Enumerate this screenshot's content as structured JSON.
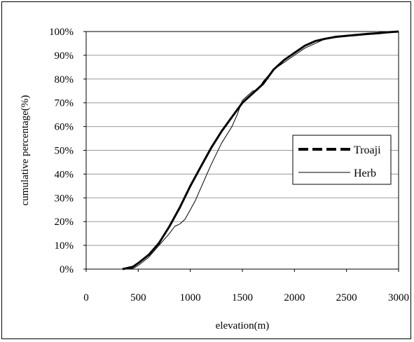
{
  "chart_data": {
    "type": "line",
    "title": "",
    "xlabel": "elevation(m)",
    "ylabel": "cumulative percentage(%)",
    "xlim": [
      0,
      3000
    ],
    "ylim": [
      0,
      100
    ],
    "x_ticks": [
      "0",
      "500",
      "1000",
      "1500",
      "2000",
      "2500",
      "3000"
    ],
    "y_ticks": [
      "0%",
      "10%",
      "20%",
      "30%",
      "40%",
      "50%",
      "60%",
      "70%",
      "80%",
      "90%",
      "100%"
    ],
    "grid": "horizontal",
    "legend_position": "right",
    "series": [
      {
        "name": "Troaji",
        "style": "thick-dashed",
        "color": "#000000",
        "points": [
          [
            350,
            0
          ],
          [
            400,
            0.5
          ],
          [
            450,
            1
          ],
          [
            500,
            2.5
          ],
          [
            600,
            6
          ],
          [
            700,
            11
          ],
          [
            800,
            18
          ],
          [
            900,
            26
          ],
          [
            1000,
            35
          ],
          [
            1100,
            43
          ],
          [
            1200,
            51
          ],
          [
            1300,
            58
          ],
          [
            1400,
            64
          ],
          [
            1500,
            70
          ],
          [
            1600,
            74
          ],
          [
            1700,
            78
          ],
          [
            1800,
            84
          ],
          [
            1900,
            88
          ],
          [
            2000,
            91
          ],
          [
            2100,
            94
          ],
          [
            2200,
            96
          ],
          [
            2300,
            97
          ],
          [
            2400,
            97.8
          ],
          [
            2500,
            98.2
          ],
          [
            2600,
            98.6
          ],
          [
            2700,
            99
          ],
          [
            2800,
            99.3
          ],
          [
            2900,
            99.7
          ],
          [
            3000,
            100
          ]
        ]
      },
      {
        "name": "Herb",
        "style": "thin-solid",
        "color": "#000000",
        "points": [
          [
            350,
            0
          ],
          [
            450,
            0.3
          ],
          [
            500,
            1.5
          ],
          [
            600,
            5
          ],
          [
            700,
            10
          ],
          [
            800,
            15
          ],
          [
            850,
            18
          ],
          [
            900,
            19
          ],
          [
            950,
            21
          ],
          [
            1000,
            25
          ],
          [
            1050,
            29
          ],
          [
            1100,
            34
          ],
          [
            1200,
            44
          ],
          [
            1300,
            53
          ],
          [
            1400,
            60
          ],
          [
            1450,
            65
          ],
          [
            1500,
            71
          ],
          [
            1550,
            73
          ],
          [
            1600,
            75
          ],
          [
            1650,
            75.5
          ],
          [
            1700,
            79
          ],
          [
            1800,
            84
          ],
          [
            1900,
            87
          ],
          [
            2000,
            90
          ],
          [
            2100,
            93
          ],
          [
            2200,
            95
          ],
          [
            2300,
            97
          ],
          [
            2400,
            97.5
          ],
          [
            2500,
            98
          ],
          [
            2600,
            98.3
          ],
          [
            2700,
            98.7
          ],
          [
            2800,
            99
          ],
          [
            2900,
            99.5
          ],
          [
            3000,
            100
          ]
        ]
      }
    ]
  }
}
